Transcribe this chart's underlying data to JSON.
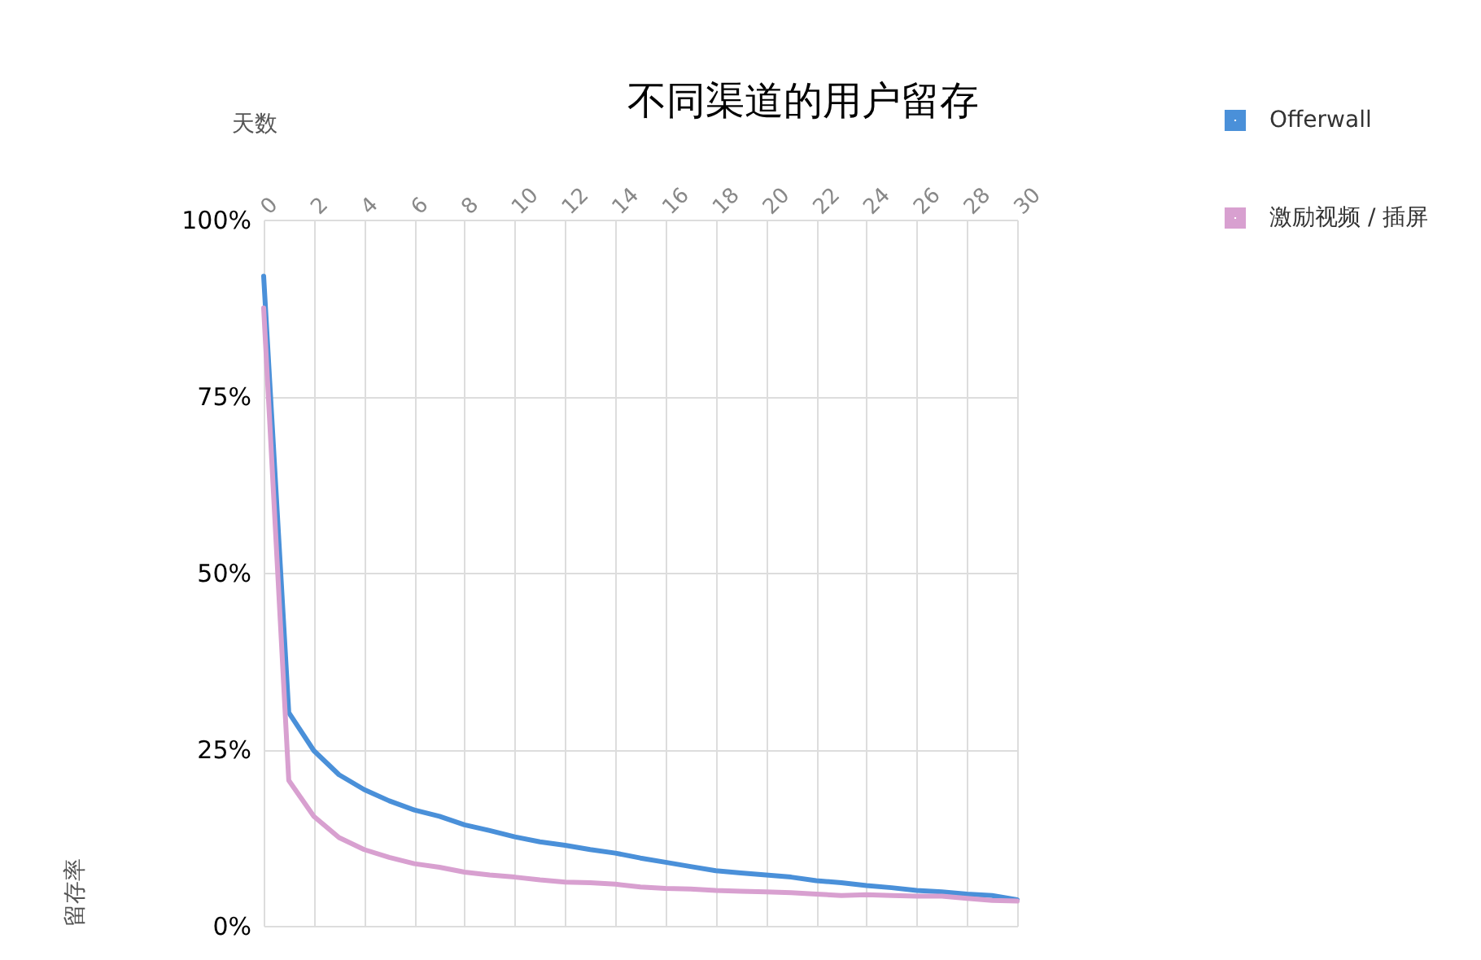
{
  "chart_data": {
    "type": "line",
    "title": "不同渠道的用户留存",
    "xlabel": "天数",
    "ylabel": "留存率",
    "x": [
      0,
      1,
      2,
      3,
      4,
      5,
      6,
      7,
      8,
      9,
      10,
      11,
      12,
      13,
      14,
      15,
      16,
      17,
      18,
      19,
      20,
      21,
      22,
      23,
      24,
      25,
      26,
      27,
      28,
      29,
      30
    ],
    "series": [
      {
        "name": "Offerwall",
        "color": "#4a90d9",
        "values": [
          92,
          30.2,
          24.8,
          21.4,
          19.3,
          17.7,
          16.4,
          15.5,
          14.3,
          13.5,
          12.6,
          11.9,
          11.4,
          10.8,
          10.3,
          9.6,
          9.0,
          8.4,
          7.8,
          7.5,
          7.2,
          6.9,
          6.4,
          6.1,
          5.7,
          5.4,
          5.0,
          4.8,
          4.5,
          4.3,
          3.7
        ]
      },
      {
        "name": "激励视频 / 插屏",
        "color": "#d8a0d0",
        "values": [
          87.5,
          20.6,
          15.5,
          12.5,
          10.8,
          9.7,
          8.8,
          8.3,
          7.6,
          7.2,
          6.9,
          6.5,
          6.2,
          6.1,
          5.9,
          5.5,
          5.3,
          5.2,
          5.0,
          4.9,
          4.8,
          4.7,
          4.5,
          4.3,
          4.4,
          4.3,
          4.2,
          4.2,
          3.9,
          3.6,
          3.5
        ]
      }
    ],
    "xlim": [
      0,
      30
    ],
    "xticks": [
      0,
      2,
      4,
      6,
      8,
      10,
      12,
      14,
      16,
      18,
      20,
      22,
      24,
      26,
      28,
      30
    ],
    "ylim": [
      0,
      100
    ],
    "yticks": [
      {
        "value": 0,
        "label": "0%"
      },
      {
        "value": 25,
        "label": "25%"
      },
      {
        "value": 50,
        "label": "50%"
      },
      {
        "value": 75,
        "label": "75%"
      },
      {
        "value": 100,
        "label": "100%"
      }
    ],
    "grid": true,
    "legend": "top right"
  }
}
